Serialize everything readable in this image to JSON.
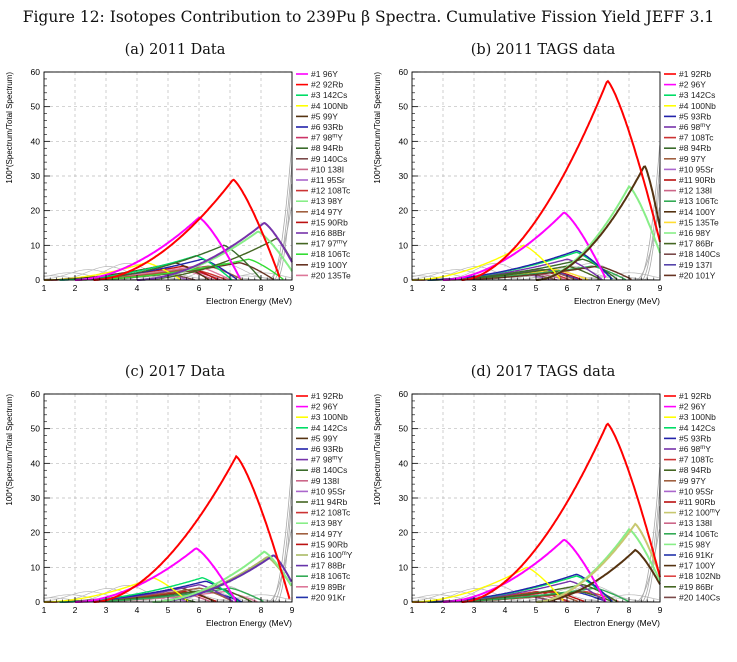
{
  "figure_title": "Figure 12: Isotopes Contribution to 239Pu β Spectra. Cumulative Fission Yield JEFF 3.1",
  "chart_data": [
    {
      "type": "line",
      "title": "(a) 2011 Data",
      "xlabel": "Electron Energy (MeV)",
      "ylabel": "100*(Spectrum/Total Spectrum)",
      "xlim": [
        1,
        9
      ],
      "ylim": [
        0,
        60
      ],
      "xticks": [
        "1",
        "2",
        "3",
        "4",
        "5",
        "6",
        "7",
        "8",
        "9"
      ],
      "yticks": [
        "0",
        "10",
        "20",
        "30",
        "40",
        "50",
        "60"
      ],
      "grid": true,
      "legend_position": "right",
      "series": [
        {
          "name": "#1 96Y",
          "color": "#ff00ff",
          "peak_x": 6.0,
          "peak_y": 18,
          "start_x": 2.0
        },
        {
          "name": "#2 92Rb",
          "color": "#ff0000",
          "peak_x": 7.1,
          "peak_y": 29,
          "start_x": 2.6
        },
        {
          "name": "#3 142Cs",
          "color": "#00dd66",
          "peak_x": 5.9,
          "peak_y": 7,
          "start_x": 1.5
        },
        {
          "name": "#4 100Nb",
          "color": "#ffff00",
          "peak_x": 4.3,
          "peak_y": 5,
          "start_x": 1.0
        },
        {
          "name": "#5 99Y",
          "color": "#553311",
          "peak_x": 5.2,
          "peak_y": 5,
          "start_x": 1.0
        },
        {
          "name": "#6 93Rb",
          "color": "#2222aa",
          "peak_x": 6.1,
          "peak_y": 6,
          "start_x": 1.5
        },
        {
          "name": "#7 98mY",
          "color": "#cc3366",
          "peak_x": 5.6,
          "peak_y": 3,
          "start_x": 1.0
        },
        {
          "name": "#8 94Rb",
          "color": "#3a6b2a",
          "peak_x": 6.8,
          "peak_y": 10,
          "start_x": 2.0
        },
        {
          "name": "#9 140Cs",
          "color": "#7a4a4a",
          "peak_x": 4.8,
          "peak_y": 2,
          "start_x": 1.0
        },
        {
          "name": "#10 138I",
          "color": "#cc6688",
          "peak_x": 5.4,
          "peak_y": 3,
          "start_x": 1.0
        },
        {
          "name": "#11 95Sr",
          "color": "#aa66cc",
          "peak_x": 4.6,
          "peak_y": 2,
          "start_x": 1.0
        },
        {
          "name": "#12 108Tc",
          "color": "#cc3333",
          "peak_x": 5.8,
          "peak_y": 3,
          "start_x": 1.0
        },
        {
          "name": "#13 98Y",
          "color": "#88ee88",
          "peak_x": 7.9,
          "peak_y": 14,
          "start_x": 4.0
        },
        {
          "name": "#14 97Y",
          "color": "#a06040",
          "peak_x": 6.3,
          "peak_y": 4,
          "start_x": 1.0
        },
        {
          "name": "#15 90Rb",
          "color": "#bb1111",
          "peak_x": 5.5,
          "peak_y": 4,
          "start_x": 1.0
        },
        {
          "name": "#16 88Br",
          "color": "#7733aa",
          "peak_x": 8.1,
          "peak_y": 16.5,
          "start_x": 4.0
        },
        {
          "name": "#17 97mY",
          "color": "#446622",
          "peak_x": 8.5,
          "peak_y": 12,
          "start_x": 4.0
        },
        {
          "name": "#18 106Tc",
          "color": "#33dd33",
          "peak_x": 7.6,
          "peak_y": 6,
          "start_x": 2.0
        },
        {
          "name": "#19 100Y",
          "color": "#663322",
          "peak_x": 7.3,
          "peak_y": 5,
          "start_x": 2.0
        },
        {
          "name": "#20 135Te",
          "color": "#dd7799",
          "peak_x": 5.9,
          "peak_y": 4,
          "start_x": 1.0
        }
      ]
    },
    {
      "type": "line",
      "title": "(b) 2011 TAGS data",
      "xlabel": "Electron Energy (MeV)",
      "ylabel": "100*(Spectrum/Total Spectrum)",
      "xlim": [
        1,
        9
      ],
      "ylim": [
        0,
        60
      ],
      "xticks": [
        "1",
        "2",
        "3",
        "4",
        "5",
        "6",
        "7",
        "8",
        "9"
      ],
      "yticks": [
        "0",
        "10",
        "20",
        "30",
        "40",
        "50",
        "60"
      ],
      "grid": true,
      "legend_position": "right",
      "series": [
        {
          "name": "#1 92Rb",
          "color": "#ff0000",
          "peak_x": 7.3,
          "peak_y": 57.5,
          "start_x": 2.6
        },
        {
          "name": "#2 96Y",
          "color": "#ff00ff",
          "peak_x": 5.9,
          "peak_y": 19.5,
          "start_x": 2.0
        },
        {
          "name": "#3 142Cs",
          "color": "#00dd66",
          "peak_x": 6.3,
          "peak_y": 8,
          "start_x": 1.5
        },
        {
          "name": "#4 100Nb",
          "color": "#ffff00",
          "peak_x": 4.6,
          "peak_y": 10,
          "start_x": 1.0
        },
        {
          "name": "#5 93Rb",
          "color": "#2222aa",
          "peak_x": 6.3,
          "peak_y": 8.5,
          "start_x": 1.5
        },
        {
          "name": "#6 98mY",
          "color": "#7733aa",
          "peak_x": 6.0,
          "peak_y": 6,
          "start_x": 1.5
        },
        {
          "name": "#7 108Tc",
          "color": "#cc3333",
          "peak_x": 5.0,
          "peak_y": 3,
          "start_x": 1.0
        },
        {
          "name": "#8 94Rb",
          "color": "#3a6b2a",
          "peak_x": 6.5,
          "peak_y": 6,
          "start_x": 1.5
        },
        {
          "name": "#9 97Y",
          "color": "#a06040",
          "peak_x": 5.2,
          "peak_y": 3,
          "start_x": 1.0
        },
        {
          "name": "#10 95Sr",
          "color": "#aa66cc",
          "peak_x": 4.4,
          "peak_y": 2,
          "start_x": 1.0
        },
        {
          "name": "#11 90Rb",
          "color": "#bb1111",
          "peak_x": 5.4,
          "peak_y": 3,
          "start_x": 1.0
        },
        {
          "name": "#12 138I",
          "color": "#cc6688",
          "peak_x": 4.9,
          "peak_y": 2,
          "start_x": 1.0
        },
        {
          "name": "#13 106Tc",
          "color": "#33aa55",
          "peak_x": 6.8,
          "peak_y": 4,
          "start_x": 1.5
        },
        {
          "name": "#14 100Y",
          "color": "#553311",
          "peak_x": 8.5,
          "peak_y": 33,
          "start_x": 5.0
        },
        {
          "name": "#15 135Te",
          "color": "#ffdd33",
          "peak_x": 5.6,
          "peak_y": 3,
          "start_x": 1.0
        },
        {
          "name": "#16 98Y",
          "color": "#88ee88",
          "peak_x": 8.0,
          "peak_y": 27,
          "start_x": 5.0
        },
        {
          "name": "#17 86Br",
          "color": "#446622",
          "peak_x": 6.0,
          "peak_y": 4,
          "start_x": 1.5
        },
        {
          "name": "#18 140Cs",
          "color": "#7a4a4a",
          "peak_x": 4.6,
          "peak_y": 2,
          "start_x": 1.0
        },
        {
          "name": "#19 137I",
          "color": "#5544aa",
          "peak_x": 5.3,
          "peak_y": 3,
          "start_x": 1.0
        },
        {
          "name": "#20 101Y",
          "color": "#663322",
          "peak_x": 7.0,
          "peak_y": 4,
          "start_x": 2.0
        }
      ]
    },
    {
      "type": "line",
      "title": "(c) 2017 Data",
      "xlabel": "Electron Energy (MeV)",
      "ylabel": "100*(Spectrum/Total Spectrum)",
      "xlim": [
        1,
        9
      ],
      "ylim": [
        0,
        60
      ],
      "xticks": [
        "1",
        "2",
        "3",
        "4",
        "5",
        "6",
        "7",
        "8",
        "9"
      ],
      "yticks": [
        "0",
        "10",
        "20",
        "30",
        "40",
        "50",
        "60"
      ],
      "grid": true,
      "legend_position": "right",
      "series": [
        {
          "name": "#1 92Rb",
          "color": "#ff0000",
          "peak_x": 7.2,
          "peak_y": 42,
          "start_x": 2.6
        },
        {
          "name": "#2 96Y",
          "color": "#ff00ff",
          "peak_x": 5.9,
          "peak_y": 15.5,
          "start_x": 2.0
        },
        {
          "name": "#3 100Nb",
          "color": "#ffff00",
          "peak_x": 4.5,
          "peak_y": 7,
          "start_x": 1.0
        },
        {
          "name": "#4 142Cs",
          "color": "#00dd66",
          "peak_x": 6.1,
          "peak_y": 7,
          "start_x": 1.5
        },
        {
          "name": "#5 99Y",
          "color": "#553311",
          "peak_x": 5.4,
          "peak_y": 4,
          "start_x": 1.0
        },
        {
          "name": "#6 93Rb",
          "color": "#2222aa",
          "peak_x": 6.2,
          "peak_y": 6,
          "start_x": 1.5
        },
        {
          "name": "#7 98mY",
          "color": "#7733aa",
          "peak_x": 6.0,
          "peak_y": 5,
          "start_x": 1.5
        },
        {
          "name": "#8 140Cs",
          "color": "#3a6b2a",
          "peak_x": 4.8,
          "peak_y": 2,
          "start_x": 1.0
        },
        {
          "name": "#9 138I",
          "color": "#cc6688",
          "peak_x": 5.3,
          "peak_y": 3,
          "start_x": 1.0
        },
        {
          "name": "#10 95Sr",
          "color": "#aa66cc",
          "peak_x": 4.6,
          "peak_y": 2,
          "start_x": 1.0
        },
        {
          "name": "#11 94Rb",
          "color": "#446622",
          "peak_x": 6.6,
          "peak_y": 4,
          "start_x": 1.5
        },
        {
          "name": "#12 108Tc",
          "color": "#cc3333",
          "peak_x": 5.5,
          "peak_y": 3,
          "start_x": 1.0
        },
        {
          "name": "#13 98Y",
          "color": "#88ee88",
          "peak_x": 8.1,
          "peak_y": 14.5,
          "start_x": 4.5
        },
        {
          "name": "#14 97Y",
          "color": "#a06040",
          "peak_x": 6.0,
          "peak_y": 4,
          "start_x": 1.0
        },
        {
          "name": "#15 90Rb",
          "color": "#bb1111",
          "peak_x": 5.5,
          "peak_y": 3,
          "start_x": 1.0
        },
        {
          "name": "#16 100mY",
          "color": "#aabb66",
          "peak_x": 8.2,
          "peak_y": 13,
          "start_x": 4.5
        },
        {
          "name": "#17 88Br",
          "color": "#6633aa",
          "peak_x": 8.4,
          "peak_y": 13.5,
          "start_x": 4.5
        },
        {
          "name": "#18 106Tc",
          "color": "#33aa55",
          "peak_x": 7.0,
          "peak_y": 4,
          "start_x": 2.0
        },
        {
          "name": "#19 89Br",
          "color": "#dd7799",
          "peak_x": 6.8,
          "peak_y": 3,
          "start_x": 2.0
        },
        {
          "name": "#20 91Kr",
          "color": "#2233aa",
          "peak_x": 6.3,
          "peak_y": 3,
          "start_x": 1.5
        }
      ]
    },
    {
      "type": "line",
      "title": "(d) 2017 TAGS data",
      "xlabel": "Electron Energy (MeV)",
      "ylabel": "100*(Spectrum/Total Spectrum)",
      "xlim": [
        1,
        9
      ],
      "ylim": [
        0,
        60
      ],
      "xticks": [
        "1",
        "2",
        "3",
        "4",
        "5",
        "6",
        "7",
        "8",
        "9"
      ],
      "yticks": [
        "0",
        "10",
        "20",
        "30",
        "40",
        "50",
        "60"
      ],
      "grid": true,
      "legend_position": "right",
      "series": [
        {
          "name": "#1 92Rb",
          "color": "#ff0000",
          "peak_x": 7.3,
          "peak_y": 51.5,
          "start_x": 2.6
        },
        {
          "name": "#2 96Y",
          "color": "#ff00ff",
          "peak_x": 5.9,
          "peak_y": 18,
          "start_x": 2.0
        },
        {
          "name": "#3 100Nb",
          "color": "#ffff00",
          "peak_x": 4.7,
          "peak_y": 10,
          "start_x": 1.0
        },
        {
          "name": "#4 142Cs",
          "color": "#00dd66",
          "peak_x": 6.3,
          "peak_y": 7.5,
          "start_x": 1.5
        },
        {
          "name": "#5 93Rb",
          "color": "#2222aa",
          "peak_x": 6.3,
          "peak_y": 8,
          "start_x": 1.5
        },
        {
          "name": "#6 98mY",
          "color": "#7733aa",
          "peak_x": 6.1,
          "peak_y": 6,
          "start_x": 1.5
        },
        {
          "name": "#7 108Tc",
          "color": "#cc3333",
          "peak_x": 5.0,
          "peak_y": 3,
          "start_x": 1.0
        },
        {
          "name": "#8 94Rb",
          "color": "#446622",
          "peak_x": 6.5,
          "peak_y": 5,
          "start_x": 1.5
        },
        {
          "name": "#9 97Y",
          "color": "#a06040",
          "peak_x": 5.3,
          "peak_y": 3,
          "start_x": 1.0
        },
        {
          "name": "#10 95Sr",
          "color": "#aa66cc",
          "peak_x": 4.5,
          "peak_y": 2,
          "start_x": 1.0
        },
        {
          "name": "#11 90Rb",
          "color": "#bb1111",
          "peak_x": 5.5,
          "peak_y": 3,
          "start_x": 1.0
        },
        {
          "name": "#12 100mY",
          "color": "#c8c870",
          "peak_x": 8.2,
          "peak_y": 22.5,
          "start_x": 5.0
        },
        {
          "name": "#13 138I",
          "color": "#cc6688",
          "peak_x": 5.0,
          "peak_y": 2,
          "start_x": 1.0
        },
        {
          "name": "#14 106Tc",
          "color": "#33aa55",
          "peak_x": 6.9,
          "peak_y": 4,
          "start_x": 1.5
        },
        {
          "name": "#15 98Y",
          "color": "#88ee88",
          "peak_x": 8.0,
          "peak_y": 21,
          "start_x": 5.0
        },
        {
          "name": "#16 91Kr",
          "color": "#2233aa",
          "peak_x": 6.2,
          "peak_y": 3,
          "start_x": 1.5
        },
        {
          "name": "#17 100Y",
          "color": "#553311",
          "peak_x": 8.2,
          "peak_y": 15,
          "start_x": 5.0
        },
        {
          "name": "#18 102Nb",
          "color": "#dd4444",
          "peak_x": 6.6,
          "peak_y": 3,
          "start_x": 1.5
        },
        {
          "name": "#19 86Br",
          "color": "#446622",
          "peak_x": 6.4,
          "peak_y": 3,
          "start_x": 1.5
        },
        {
          "name": "#20 140Cs",
          "color": "#7a4a4a",
          "peak_x": 4.6,
          "peak_y": 2,
          "start_x": 1.0
        }
      ]
    }
  ]
}
